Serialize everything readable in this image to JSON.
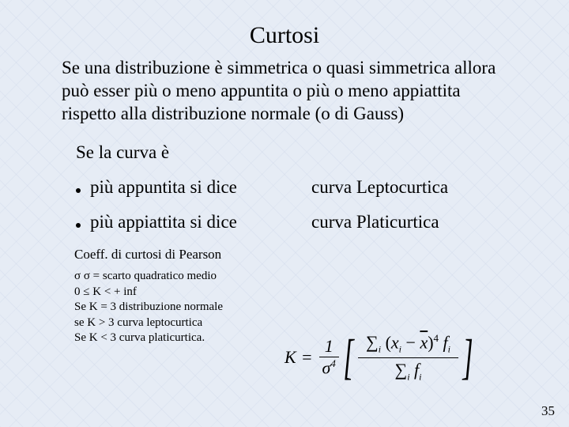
{
  "title": "Curtosi",
  "intro": "Se una distribuzione è simmetrica o quasi simmetrica allora può esser più o meno appuntita o più o meno appiattita rispetto alla distribuzione normale (o di Gauss)",
  "subhead": "Se la curva è",
  "bullets": [
    {
      "left": "più appuntita si dice",
      "right": "curva Leptocurtica"
    },
    {
      "left": "più appiattita si dice",
      "right": "curva Platicurtica"
    }
  ],
  "coeff_label": "Coeff. di curtosi  di Pearson",
  "notes": [
    "σ σ = scarto quadratico medio",
    "  0 ≤   K  < + inf",
    "Se  K = 3  distribuzione normale",
    "se   K > 3  curva leptocurtica",
    "Se  K < 3 curva platicurtica."
  ],
  "formula": {
    "lhs": "K",
    "eq": "=",
    "outer_num": "1",
    "outer_den_sigma": "σ",
    "outer_den_pow": "4",
    "sum_symbol": "∑",
    "sub": "i",
    "xi": "x",
    "xbar": "x",
    "pow4": "4",
    "fi": "f"
  },
  "pagenum": "35",
  "colors": {
    "background": "#e6ecf5",
    "text": "#000000"
  },
  "typography": {
    "title_fontsize": 30,
    "body_fontsize": 23,
    "coeff_fontsize": 17,
    "notes_fontsize": 15,
    "pagenum_fontsize": 17,
    "font_family": "Times New Roman"
  }
}
